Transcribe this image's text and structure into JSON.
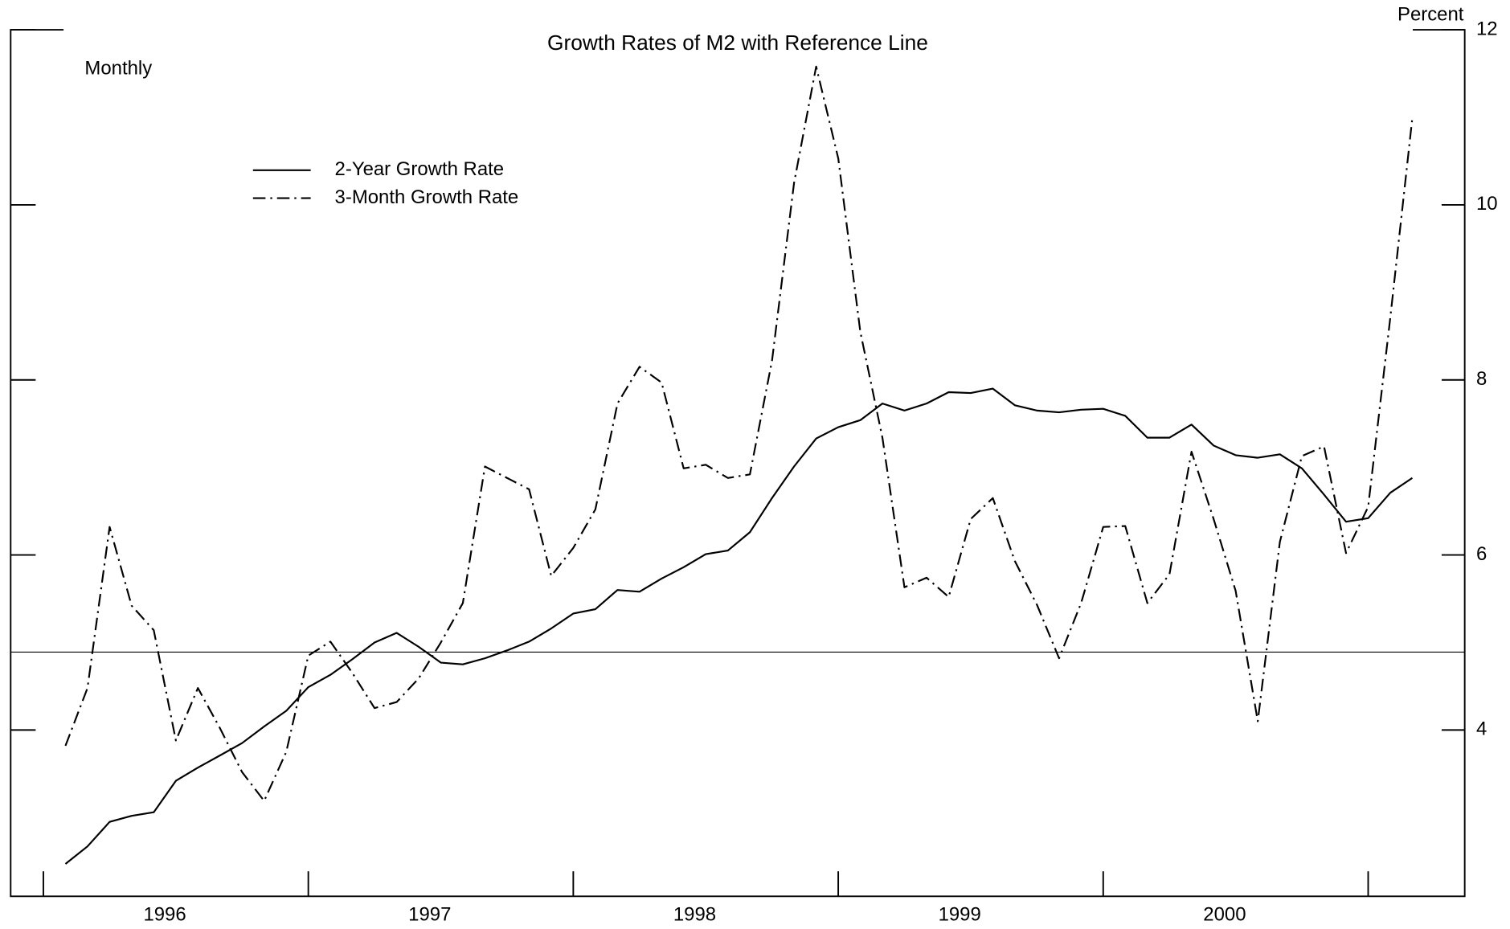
{
  "chart_data": {
    "type": "line",
    "title": "Growth Rates of M2 with Reference Line",
    "frequency_note": "Monthly",
    "y_unit_label": "Percent",
    "categories": [
      null,
      null,
      null,
      null,
      null,
      "1996",
      null,
      null,
      null,
      null,
      null,
      null,
      null,
      null,
      null,
      null,
      null,
      "1997",
      null,
      null,
      null,
      null,
      null,
      null,
      null,
      null,
      null,
      null,
      null,
      "1998",
      null,
      null,
      null,
      null,
      null,
      null,
      null,
      null,
      null,
      null,
      null,
      "1999",
      null,
      null,
      null,
      null,
      null,
      null,
      null,
      null,
      null,
      null,
      null,
      "2000",
      null,
      null,
      null,
      null,
      null,
      null,
      null,
      null
    ],
    "series": [
      {
        "name": "2-Year Growth Rate",
        "color": "#000000",
        "dash": "solid",
        "values": [
          2.47,
          2.67,
          2.95,
          3.02,
          3.06,
          3.42,
          3.57,
          3.71,
          3.85,
          4.04,
          4.22,
          4.49,
          4.63,
          4.81,
          5.0,
          5.11,
          4.95,
          4.77,
          4.75,
          4.82,
          4.91,
          5.01,
          5.16,
          5.33,
          5.38,
          5.6,
          5.58,
          5.73,
          5.86,
          6.01,
          6.05,
          6.26,
          6.65,
          7.01,
          7.33,
          7.46,
          7.54,
          7.73,
          7.65,
          7.73,
          7.86,
          7.85,
          7.9,
          7.71,
          7.65,
          7.63,
          7.66,
          7.67,
          7.59,
          7.34,
          7.34,
          7.49,
          7.25,
          7.14,
          7.11,
          7.15,
          6.99,
          6.69,
          6.38,
          6.42,
          6.71,
          6.88
        ]
      },
      {
        "name": "3-Month Growth Rate",
        "color": "#000000",
        "dash": "dashdot",
        "values": [
          3.82,
          4.48,
          6.32,
          5.42,
          5.14,
          3.88,
          4.48,
          4.02,
          3.52,
          3.19,
          3.75,
          4.85,
          5.01,
          4.65,
          4.25,
          4.32,
          4.59,
          5.0,
          5.45,
          7.01,
          6.88,
          6.75,
          5.76,
          6.08,
          6.52,
          7.73,
          8.15,
          7.97,
          6.99,
          7.03,
          6.88,
          6.92,
          8.22,
          10.25,
          11.58,
          10.53,
          8.55,
          7.34,
          5.63,
          5.74,
          5.52,
          6.41,
          6.65,
          5.93,
          5.43,
          4.82,
          5.45,
          6.32,
          6.33,
          5.45,
          5.78,
          7.18,
          6.41,
          5.59,
          4.1,
          6.15,
          7.13,
          7.24,
          6.02,
          6.55,
          8.71,
          10.99
        ]
      }
    ],
    "reference_line": 4.89,
    "ylim": [
      2.1,
      12
    ],
    "yticks": [
      4,
      6,
      8,
      10,
      12
    ],
    "legend": "upper-left"
  }
}
